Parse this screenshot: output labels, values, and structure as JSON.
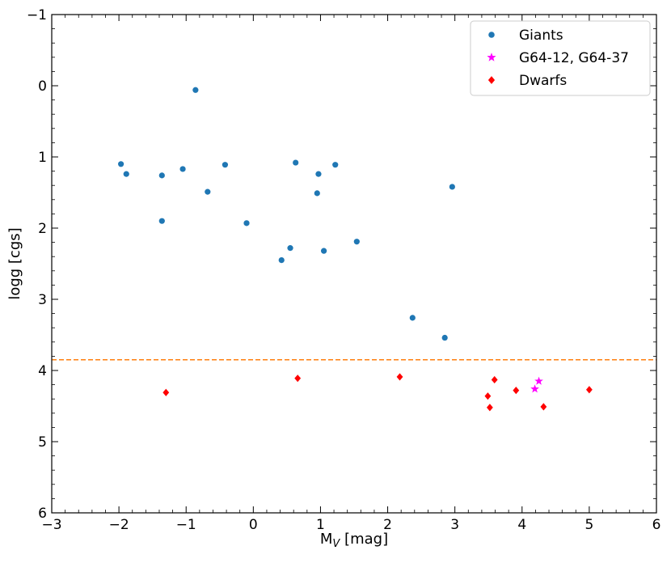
{
  "chart_data": {
    "type": "scatter",
    "xlabel_main": "M",
    "xlabel_sub": "V",
    "xlabel_rest": " [mag]",
    "ylabel": "logg [cgs]",
    "xlim": [
      -3,
      6
    ],
    "ylim": [
      6,
      -1
    ],
    "y_inverted": true,
    "x_ticks": [
      -3,
      -2,
      -1,
      0,
      1,
      2,
      3,
      4,
      5,
      6
    ],
    "x_tick_labels": [
      "−3",
      "−2",
      "−1",
      "0",
      "1",
      "2",
      "3",
      "4",
      "5",
      "6"
    ],
    "y_ticks": [
      -1,
      0,
      1,
      2,
      3,
      4,
      5,
      6
    ],
    "y_tick_labels": [
      "−1",
      "0",
      "1",
      "2",
      "3",
      "4",
      "5",
      "6"
    ],
    "grid": false,
    "legend_position": "top-right",
    "reference_line": {
      "y": 3.85,
      "style": "dashed",
      "color": "#ff7f0e"
    },
    "series": [
      {
        "name": "Giants",
        "marker": "circle",
        "color": "#1f77b4",
        "points": [
          [
            -0.86,
            0.06
          ],
          [
            -1.97,
            1.1
          ],
          [
            -1.89,
            1.24
          ],
          [
            -1.36,
            1.26
          ],
          [
            -1.05,
            1.17
          ],
          [
            -0.42,
            1.11
          ],
          [
            -0.68,
            1.49
          ],
          [
            -1.36,
            1.9
          ],
          [
            -0.1,
            1.93
          ],
          [
            0.63,
            1.08
          ],
          [
            0.97,
            1.24
          ],
          [
            1.22,
            1.11
          ],
          [
            0.95,
            1.51
          ],
          [
            0.55,
            2.28
          ],
          [
            0.42,
            2.45
          ],
          [
            1.05,
            2.32
          ],
          [
            1.54,
            2.19
          ],
          [
            2.96,
            1.42
          ],
          [
            2.37,
            3.26
          ],
          [
            2.85,
            3.54
          ]
        ]
      },
      {
        "name": "G64-12, G64-37",
        "marker": "star",
        "color": "#ff00ff",
        "points": [
          [
            4.25,
            4.15
          ],
          [
            4.19,
            4.26
          ]
        ]
      },
      {
        "name": "Dwarfs",
        "marker": "diamond",
        "color": "#ff0000",
        "points": [
          [
            -1.3,
            4.31
          ],
          [
            0.66,
            4.11
          ],
          [
            2.18,
            4.09
          ],
          [
            3.59,
            4.13
          ],
          [
            3.49,
            4.36
          ],
          [
            3.52,
            4.52
          ],
          [
            3.91,
            4.28
          ],
          [
            4.32,
            4.51
          ],
          [
            5.0,
            4.27
          ]
        ]
      }
    ]
  }
}
